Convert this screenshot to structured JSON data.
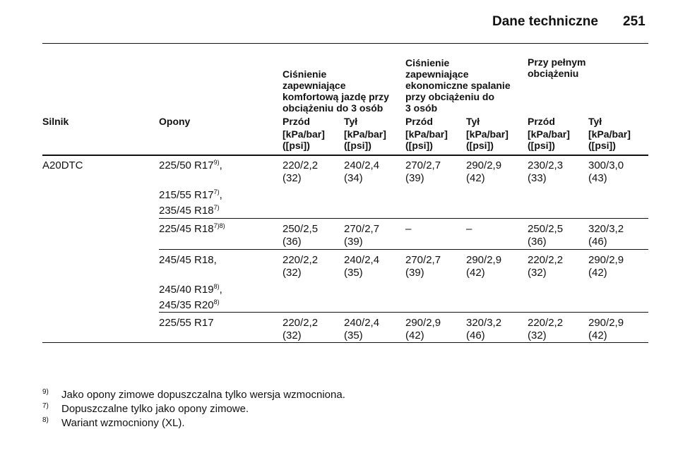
{
  "header": {
    "title": "Dane techniczne",
    "page": "251"
  },
  "table": {
    "group_headers": [
      {
        "lines": [
          "Ciśnienie",
          "zapewniające",
          "komfortową jazdę przy",
          "obciążeniu do 3 osób"
        ]
      },
      {
        "lines": [
          "Ciśnienie",
          "zapewniające",
          "ekonomiczne spalanie",
          "przy obciążeniu do",
          "3 osób"
        ]
      },
      {
        "lines": [
          "Przy pełnym",
          "obciążeniu"
        ]
      }
    ],
    "columns": [
      "Silnik",
      "Opony",
      "Przód",
      "Tył",
      "Przód",
      "Tył",
      "Przód",
      "Tył"
    ],
    "units": [
      [
        "[kPa/bar]",
        "([psi])"
      ],
      [
        "[kPa/bar]",
        "([psi])"
      ],
      [
        "[kPa/bar]",
        "([psi])"
      ],
      [
        "[kPa/bar]",
        "([psi])"
      ],
      [
        "[kPa/bar]",
        "([psi])"
      ],
      [
        "[kPa/bar]",
        "([psi])"
      ]
    ],
    "rows": [
      {
        "engine": "A20DTC",
        "tyres": [
          {
            "text": "225/50 R17",
            "sup": "9)",
            "suffix": ","
          },
          {
            "text": "215/55 R17",
            "sup": "7)",
            "suffix": ","
          },
          {
            "text": "235/45 R18",
            "sup": "7)"
          }
        ],
        "pressures": [
          [
            "220/2,2",
            "(32)"
          ],
          [
            "240/2,4",
            "(34)"
          ],
          [
            "270/2,7",
            "(39)"
          ],
          [
            "290/2,9",
            "(42)"
          ],
          [
            "230/2,3",
            "(33)"
          ],
          [
            "300/3,0",
            "(43)"
          ]
        ]
      },
      {
        "tyres": [
          {
            "text": "225/45 R18",
            "sup": "7)8)"
          }
        ],
        "pressures": [
          [
            "250/2,5",
            "(36)"
          ],
          [
            "270/2,7",
            "(39)"
          ],
          [
            "–"
          ],
          [
            "–"
          ],
          [
            "250/2,5",
            "(36)"
          ],
          [
            "320/3,2",
            "(46)"
          ]
        ]
      },
      {
        "tyres": [
          {
            "text": "245/45 R18,"
          },
          {
            "text": "245/40 R19",
            "sup": "8)",
            "suffix": ","
          },
          {
            "text": "245/35 R20",
            "sup": "8)"
          }
        ],
        "pressures": [
          [
            "220/2,2",
            "(32)"
          ],
          [
            "240/2,4",
            "(35)"
          ],
          [
            "270/2,7",
            "(39)"
          ],
          [
            "290/2,9",
            "(42)"
          ],
          [
            "220/2,2",
            "(32)"
          ],
          [
            "290/2,9",
            "(42)"
          ]
        ]
      },
      {
        "tyres": [
          {
            "text": "225/55 R17"
          }
        ],
        "pressures": [
          [
            "220/2,2",
            "(32)"
          ],
          [
            "240/2,4",
            "(35)"
          ],
          [
            "290/2,9",
            "(42)"
          ],
          [
            "320/3,2",
            "(46)"
          ],
          [
            "220/2,2",
            "(32)"
          ],
          [
            "290/2,9",
            "(42)"
          ]
        ]
      }
    ]
  },
  "footnotes": [
    {
      "mark": "9)",
      "text": "Jako opony zimowe dopuszczalna tylko wersja wzmocniona."
    },
    {
      "mark": "7)",
      "text": "Dopuszczalne tylko jako opony zimowe."
    },
    {
      "mark": "8)",
      "text": "Wariant wzmocniony (XL)."
    }
  ]
}
